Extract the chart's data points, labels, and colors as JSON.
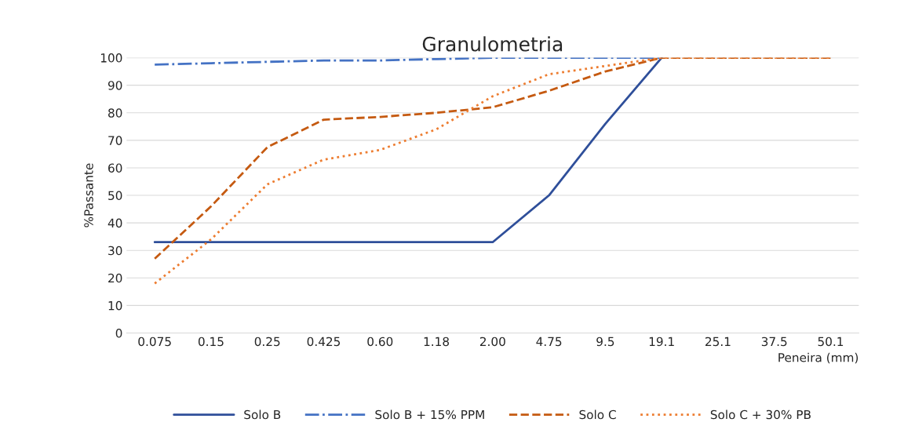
{
  "chart_data": {
    "type": "line",
    "title": "Granulometria",
    "xlabel": "Peneira (mm)",
    "ylabel": "%Passante",
    "categories": [
      "0.075",
      "0.15",
      "0.25",
      "0.425",
      "0.60",
      "1.18",
      "2.00",
      "4.75",
      "9.5",
      "19.1",
      "25.1",
      "37.5",
      "50.1"
    ],
    "ylim": [
      0,
      100
    ],
    "yticks": [
      0,
      10,
      20,
      30,
      40,
      50,
      60,
      70,
      80,
      90,
      100
    ],
    "grid": "y",
    "legend": "bottom",
    "series": [
      {
        "name": "Solo B",
        "color": "#2f4f9a",
        "line_style": "solid",
        "values": [
          33,
          33,
          33,
          33,
          33,
          33,
          33,
          50,
          76,
          100,
          null,
          null,
          null
        ]
      },
      {
        "name": "Solo B + 15% PPM",
        "color": "#4472c4",
        "line_style": "dashdot",
        "values": [
          97.5,
          98,
          98.5,
          99,
          99,
          99.5,
          100,
          100,
          100,
          100,
          null,
          null,
          null
        ]
      },
      {
        "name": "Solo C",
        "color": "#c55a11",
        "line_style": "dashed",
        "values": [
          27,
          46,
          67.5,
          77.5,
          78.5,
          80,
          82,
          88,
          95,
          100,
          100,
          100,
          100
        ]
      },
      {
        "name": "Solo C + 30% PB",
        "color": "#ed7d31",
        "line_style": "dotted",
        "values": [
          18,
          34,
          54,
          63,
          66.5,
          74,
          86,
          94,
          97,
          100,
          100,
          100,
          100
        ]
      }
    ]
  }
}
